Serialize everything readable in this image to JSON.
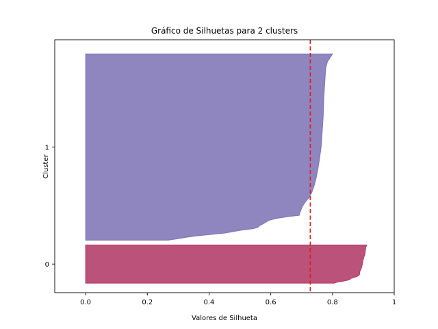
{
  "chart_data": {
    "type": "area",
    "title": "Gráfico de Silhuetas para 2 clusters",
    "xlabel": "Valores de Silhueta",
    "ylabel": "Cluster",
    "xlim": [
      -0.1,
      1.0
    ],
    "ylim": [
      -10,
      520
    ],
    "xticks": [
      "0.0",
      "0.2",
      "0.4",
      "0.6",
      "0.8",
      "1"
    ],
    "xtick_values": [
      0.0,
      0.2,
      0.4,
      0.6,
      0.8,
      1.0
    ],
    "grid": false,
    "reference_line": {
      "x": 0.728,
      "style": "dashed",
      "color": "#e31a1c"
    },
    "clusters": [
      {
        "label": "0",
        "color": "#b03a68",
        "y_range": [
          10,
          90
        ],
        "silhouette_profile": [
          [
            10,
            0.806
          ],
          [
            12,
            0.815
          ],
          [
            14,
            0.835
          ],
          [
            17,
            0.855
          ],
          [
            20,
            0.86
          ],
          [
            24,
            0.88
          ],
          [
            27,
            0.887
          ],
          [
            30,
            0.888
          ],
          [
            35,
            0.889
          ],
          [
            40,
            0.893
          ],
          [
            45,
            0.895
          ],
          [
            50,
            0.897
          ],
          [
            55,
            0.898
          ],
          [
            60,
            0.9
          ],
          [
            65,
            0.902
          ],
          [
            70,
            0.905
          ],
          [
            75,
            0.906
          ],
          [
            80,
            0.907
          ],
          [
            85,
            0.908
          ],
          [
            90,
            0.911
          ]
        ]
      },
      {
        "label": "1",
        "color": "#7f74b6",
        "y_range": [
          100,
          490
        ],
        "silhouette_profile": [
          [
            100,
            0.268
          ],
          [
            103,
            0.298
          ],
          [
            106,
            0.325
          ],
          [
            109,
            0.36
          ],
          [
            112,
            0.408
          ],
          [
            115,
            0.452
          ],
          [
            118,
            0.478
          ],
          [
            121,
            0.505
          ],
          [
            124,
            0.542
          ],
          [
            127,
            0.558
          ],
          [
            131,
            0.565
          ],
          [
            134,
            0.575
          ],
          [
            138,
            0.585
          ],
          [
            142,
            0.596
          ],
          [
            146,
            0.622
          ],
          [
            150,
            0.663
          ],
          [
            152,
            0.692
          ],
          [
            160,
            0.696
          ],
          [
            170,
            0.702
          ],
          [
            180,
            0.712
          ],
          [
            190,
            0.725
          ],
          [
            200,
            0.733
          ],
          [
            215,
            0.741
          ],
          [
            230,
            0.747
          ],
          [
            250,
            0.753
          ],
          [
            270,
            0.758
          ],
          [
            300,
            0.764
          ],
          [
            330,
            0.767
          ],
          [
            360,
            0.77
          ],
          [
            400,
            0.772
          ],
          [
            430,
            0.775
          ],
          [
            460,
            0.778
          ],
          [
            475,
            0.784
          ],
          [
            480,
            0.79
          ],
          [
            485,
            0.795
          ],
          [
            490,
            0.8
          ]
        ]
      }
    ]
  }
}
